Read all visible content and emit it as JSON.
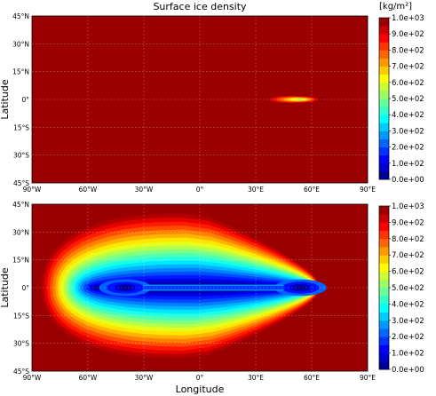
{
  "chart_data": [
    {
      "type": "heatmap",
      "title": "Surface ice density",
      "xlabel": "",
      "ylabel": "Latitude",
      "xlim": [
        -90,
        90
      ],
      "ylim": [
        -45,
        45
      ],
      "x_ticks": [
        -90,
        -60,
        -30,
        0,
        30,
        60,
        90
      ],
      "x_tick_labels": [
        "90°W",
        "60°W",
        "30°W",
        "0°",
        "30°E",
        "60°E",
        "90°E"
      ],
      "y_ticks": [
        -45,
        -30,
        -15,
        0,
        15,
        30,
        45
      ],
      "y_tick_labels": [
        "45°S",
        "30°S",
        "15°S",
        "0°",
        "15°N",
        "30°N",
        "45°N"
      ],
      "grid": true,
      "background_value": 1000,
      "features": [
        {
          "kind": "low-density patch",
          "lon_range": [
            36,
            64
          ],
          "lat_range": [
            -2,
            2
          ],
          "min_value": 520,
          "peak_lon": 54
        }
      ],
      "colorbar": {
        "unit": "[kg/m²]",
        "min": 0,
        "max": 1000,
        "tick_values": [
          0,
          100,
          200,
          300,
          400,
          500,
          600,
          700,
          800,
          900,
          1000
        ],
        "tick_labels": [
          "0.0e+00",
          "1.0e+02",
          "2.0e+02",
          "3.0e+02",
          "4.0e+02",
          "5.0e+02",
          "6.0e+02",
          "7.0e+02",
          "8.0e+02",
          "9.0e+02",
          "1.0e+03"
        ],
        "levels": 20
      }
    },
    {
      "type": "heatmap",
      "title": "",
      "xlabel": "Longitude",
      "ylabel": "Latitude",
      "xlim": [
        -90,
        90
      ],
      "ylim": [
        -45,
        45
      ],
      "x_ticks": [
        -90,
        -60,
        -30,
        0,
        30,
        60,
        90
      ],
      "x_tick_labels": [
        "90°W",
        "60°W",
        "30°W",
        "0°",
        "30°E",
        "60°E",
        "90°E"
      ],
      "y_ticks": [
        -45,
        -30,
        -15,
        0,
        15,
        30,
        45
      ],
      "y_tick_labels": [
        "45°S",
        "30°S",
        "15°S",
        "0°",
        "15°N",
        "30°N",
        "45°N"
      ],
      "grid": true,
      "background_value": 1000,
      "features": [
        {
          "kind": "low-density band",
          "lon_range": [
            -85,
            64
          ],
          "lat_range": [
            -38,
            40
          ],
          "min_value": 0,
          "minima_lon": [
            -40,
            56
          ]
        }
      ],
      "colorbar": {
        "unit": "",
        "min": 0,
        "max": 1000,
        "tick_values": [
          0,
          100,
          200,
          300,
          400,
          500,
          600,
          700,
          800,
          900,
          1000
        ],
        "tick_labels": [
          "0.0e+00",
          "1.0e+02",
          "2.0e+02",
          "3.0e+02",
          "4.0e+02",
          "5.0e+02",
          "6.0e+02",
          "7.0e+02",
          "8.0e+02",
          "9.0e+02",
          "1.0e+03"
        ],
        "levels": 20
      }
    }
  ],
  "colormap": [
    "#00007f",
    "#0000ff",
    "#0080ff",
    "#00ffff",
    "#80ff80",
    "#ffff00",
    "#ff8000",
    "#ff0000",
    "#7f0000"
  ]
}
